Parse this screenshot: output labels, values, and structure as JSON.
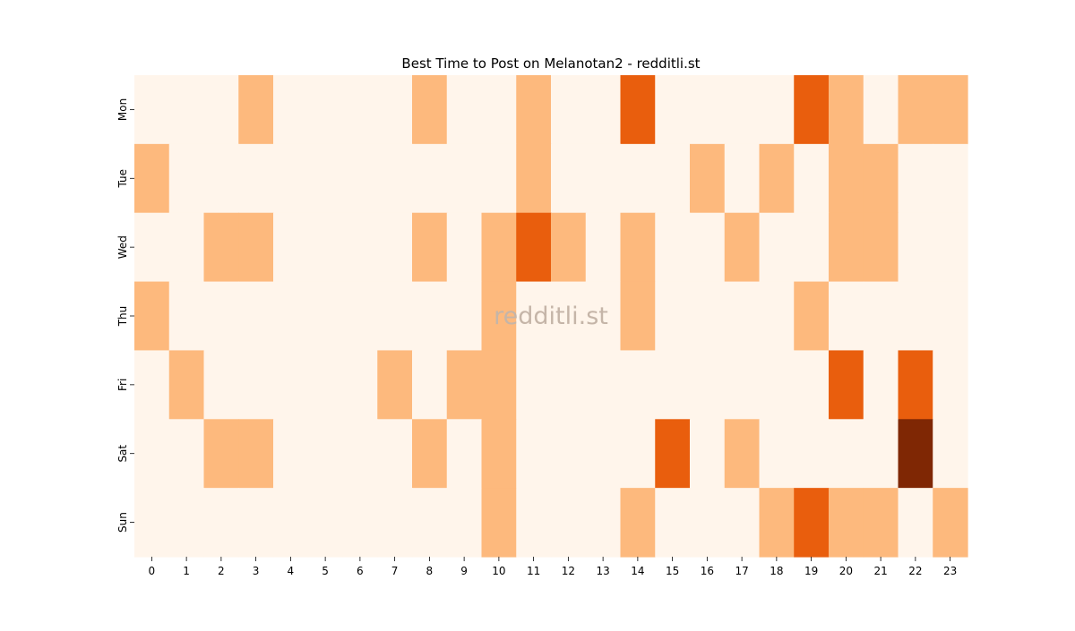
{
  "chart_data": {
    "type": "heatmap",
    "title": "Best Time to Post on Melanotan2 - redditli.st",
    "watermark": "redditli.st",
    "x_categories": [
      "0",
      "1",
      "2",
      "3",
      "4",
      "5",
      "6",
      "7",
      "8",
      "9",
      "10",
      "11",
      "12",
      "13",
      "14",
      "15",
      "16",
      "17",
      "18",
      "19",
      "20",
      "21",
      "22",
      "23"
    ],
    "y_categories": [
      "Mon",
      "Tue",
      "Wed",
      "Thu",
      "Fri",
      "Sat",
      "Sun"
    ],
    "xlabel": "",
    "ylabel": "",
    "colorbar": false,
    "value_range": [
      0,
      3
    ],
    "values": [
      [
        0,
        0,
        0,
        1,
        0,
        0,
        0,
        0,
        1,
        0,
        0,
        1,
        0,
        0,
        2,
        0,
        0,
        0,
        0,
        2,
        1,
        0,
        1,
        1
      ],
      [
        1,
        0,
        0,
        0,
        0,
        0,
        0,
        0,
        0,
        0,
        0,
        1,
        0,
        0,
        0,
        0,
        1,
        0,
        1,
        0,
        1,
        1,
        0,
        0
      ],
      [
        0,
        0,
        1,
        1,
        0,
        0,
        0,
        0,
        1,
        0,
        1,
        2,
        1,
        0,
        1,
        0,
        0,
        1,
        0,
        0,
        1,
        1,
        0,
        0
      ],
      [
        1,
        0,
        0,
        0,
        0,
        0,
        0,
        0,
        0,
        0,
        1,
        0,
        0,
        0,
        1,
        0,
        0,
        0,
        0,
        1,
        0,
        0,
        0,
        0
      ],
      [
        0,
        1,
        0,
        0,
        0,
        0,
        0,
        1,
        0,
        1,
        1,
        0,
        0,
        0,
        0,
        0,
        0,
        0,
        0,
        0,
        2,
        0,
        2,
        0
      ],
      [
        0,
        0,
        1,
        1,
        0,
        0,
        0,
        0,
        1,
        0,
        1,
        0,
        0,
        0,
        0,
        2,
        0,
        1,
        0,
        0,
        0,
        0,
        3,
        0
      ],
      [
        0,
        0,
        0,
        0,
        0,
        0,
        0,
        0,
        0,
        0,
        1,
        0,
        0,
        0,
        1,
        0,
        0,
        0,
        1,
        2,
        1,
        1,
        0,
        1
      ]
    ],
    "level_colors": [
      "#fff5eb",
      "#fdb97d",
      "#e95e0d",
      "#7f2704"
    ],
    "watermark_color": "#c5b5a8"
  }
}
